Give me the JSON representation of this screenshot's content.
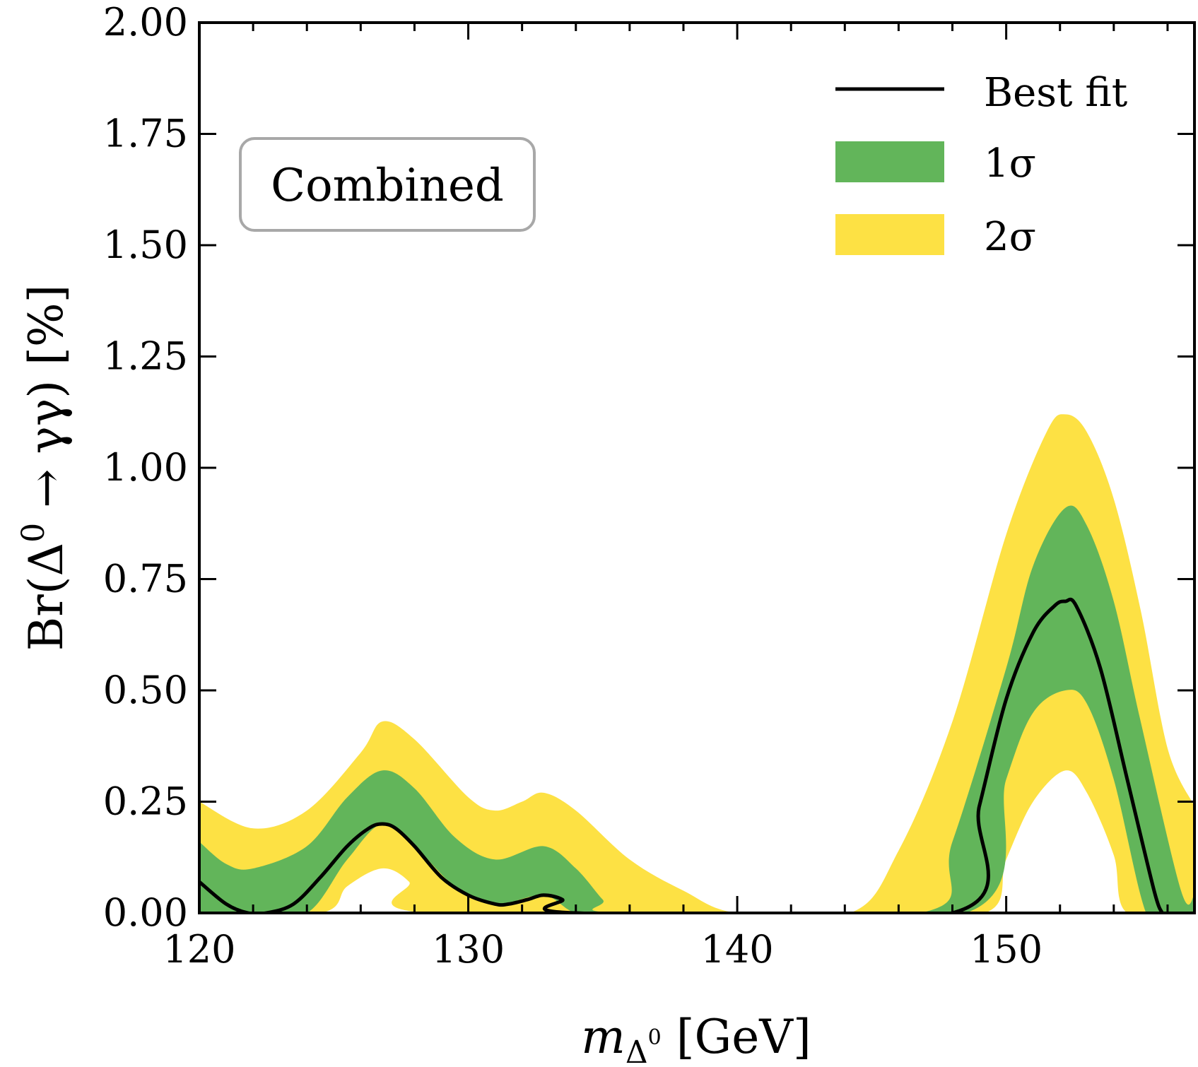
{
  "chart_data": {
    "type": "area",
    "xlabel": "m_Δ0 [GeV]",
    "xlabel_parts": {
      "main": "m",
      "sub": "Δ",
      "subsup": "0",
      "unit": " [GeV]"
    },
    "ylabel": "Br(Δ0 → γγ) [%]",
    "ylabel_parts": {
      "pre": "Br(Δ",
      "sup": "0",
      "post": " → γγ) [%]"
    },
    "xlim": [
      120,
      157
    ],
    "ylim": [
      0,
      2.0
    ],
    "xticks": [
      120,
      130,
      140,
      150
    ],
    "xtick_labels": [
      "120",
      "130",
      "140",
      "150"
    ],
    "yticks": [
      0,
      0.25,
      0.5,
      0.75,
      1.0,
      1.25,
      1.5,
      1.75,
      2.0
    ],
    "ytick_labels": [
      "0.00",
      "0.25",
      "0.50",
      "0.75",
      "1.00",
      "1.25",
      "1.50",
      "1.75",
      "2.00"
    ],
    "annotation": "Combined",
    "legend_position": "top-right",
    "legend": [
      {
        "label": "Best fit",
        "kind": "line",
        "color": "#000000"
      },
      {
        "label": "1σ",
        "kind": "band",
        "color": "#62b55a"
      },
      {
        "label": "2σ",
        "kind": "band",
        "color": "#fde144"
      }
    ],
    "series": [
      {
        "name": "2σ",
        "color": "#fde144",
        "upper": {
          "x": [
            120,
            122,
            124,
            126,
            126.8,
            128,
            130,
            131,
            132,
            132.8,
            134,
            136,
            138,
            140,
            144.2,
            146,
            148,
            150,
            151.5,
            152.2,
            153,
            154,
            155,
            156,
            157
          ],
          "y": [
            0.25,
            0.19,
            0.23,
            0.36,
            0.43,
            0.39,
            0.26,
            0.23,
            0.25,
            0.27,
            0.23,
            0.12,
            0.05,
            0.0,
            0.0,
            0.14,
            0.43,
            0.85,
            1.08,
            1.12,
            1.08,
            0.93,
            0.68,
            0.37,
            0.24
          ]
        },
        "lower": {
          "x": [
            120,
            124.5,
            125.5,
            126.8,
            127.8,
            128.5,
            144.2,
            149.2,
            150,
            151,
            152.2,
            153,
            154,
            154.5,
            157
          ],
          "y": [
            0,
            0,
            0.06,
            0.1,
            0.07,
            0,
            0,
            0,
            0.12,
            0.25,
            0.32,
            0.27,
            0.13,
            0,
            0
          ]
        }
      },
      {
        "name": "1σ",
        "color": "#62b55a",
        "upper": {
          "x": [
            120,
            121,
            122,
            124,
            125.5,
            126.8,
            128,
            129.5,
            131,
            132.8,
            134,
            135,
            135.6,
            146.8,
            148,
            150,
            151,
            152.2,
            153,
            154,
            155,
            156.5,
            157
          ],
          "y": [
            0.16,
            0.11,
            0.1,
            0.15,
            0.26,
            0.32,
            0.28,
            0.17,
            0.12,
            0.15,
            0.1,
            0.03,
            0.0,
            0.0,
            0.16,
            0.55,
            0.78,
            0.91,
            0.87,
            0.7,
            0.43,
            0.05,
            0.04
          ]
        },
        "lower": {
          "x": [
            120,
            121,
            122,
            124,
            125.5,
            126.8,
            128,
            129.5,
            131,
            132.8,
            134,
            135.6,
            148.5,
            150,
            151,
            152.2,
            153,
            154,
            155.2,
            156,
            157
          ],
          "y": [
            0.0,
            0.0,
            0.0,
            0.0,
            0.12,
            0.2,
            0.15,
            0.06,
            0.02,
            0.04,
            0.0,
            0.0,
            0.0,
            0.3,
            0.45,
            0.5,
            0.47,
            0.3,
            0.0,
            0.0,
            0.0
          ]
        }
      },
      {
        "name": "Best fit",
        "color": "#000000",
        "line": {
          "x": [
            120,
            121,
            121.8,
            122.5,
            123.5,
            124.5,
            125.5,
            126.3,
            126.8,
            127.3,
            128,
            129,
            130,
            131,
            131.5,
            132.2,
            132.8,
            133.5,
            134,
            148,
            149,
            150,
            151,
            151.8,
            152.2,
            152.6,
            153.5,
            154.5,
            155.5,
            155.8
          ],
          "y": [
            0.07,
            0.02,
            0.0,
            0.0,
            0.02,
            0.08,
            0.15,
            0.19,
            0.2,
            0.19,
            0.15,
            0.08,
            0.04,
            0.02,
            0.02,
            0.03,
            0.04,
            0.03,
            0.0,
            0.0,
            0.24,
            0.48,
            0.63,
            0.69,
            0.7,
            0.69,
            0.55,
            0.3,
            0.05,
            0.0
          ]
        }
      }
    ]
  }
}
